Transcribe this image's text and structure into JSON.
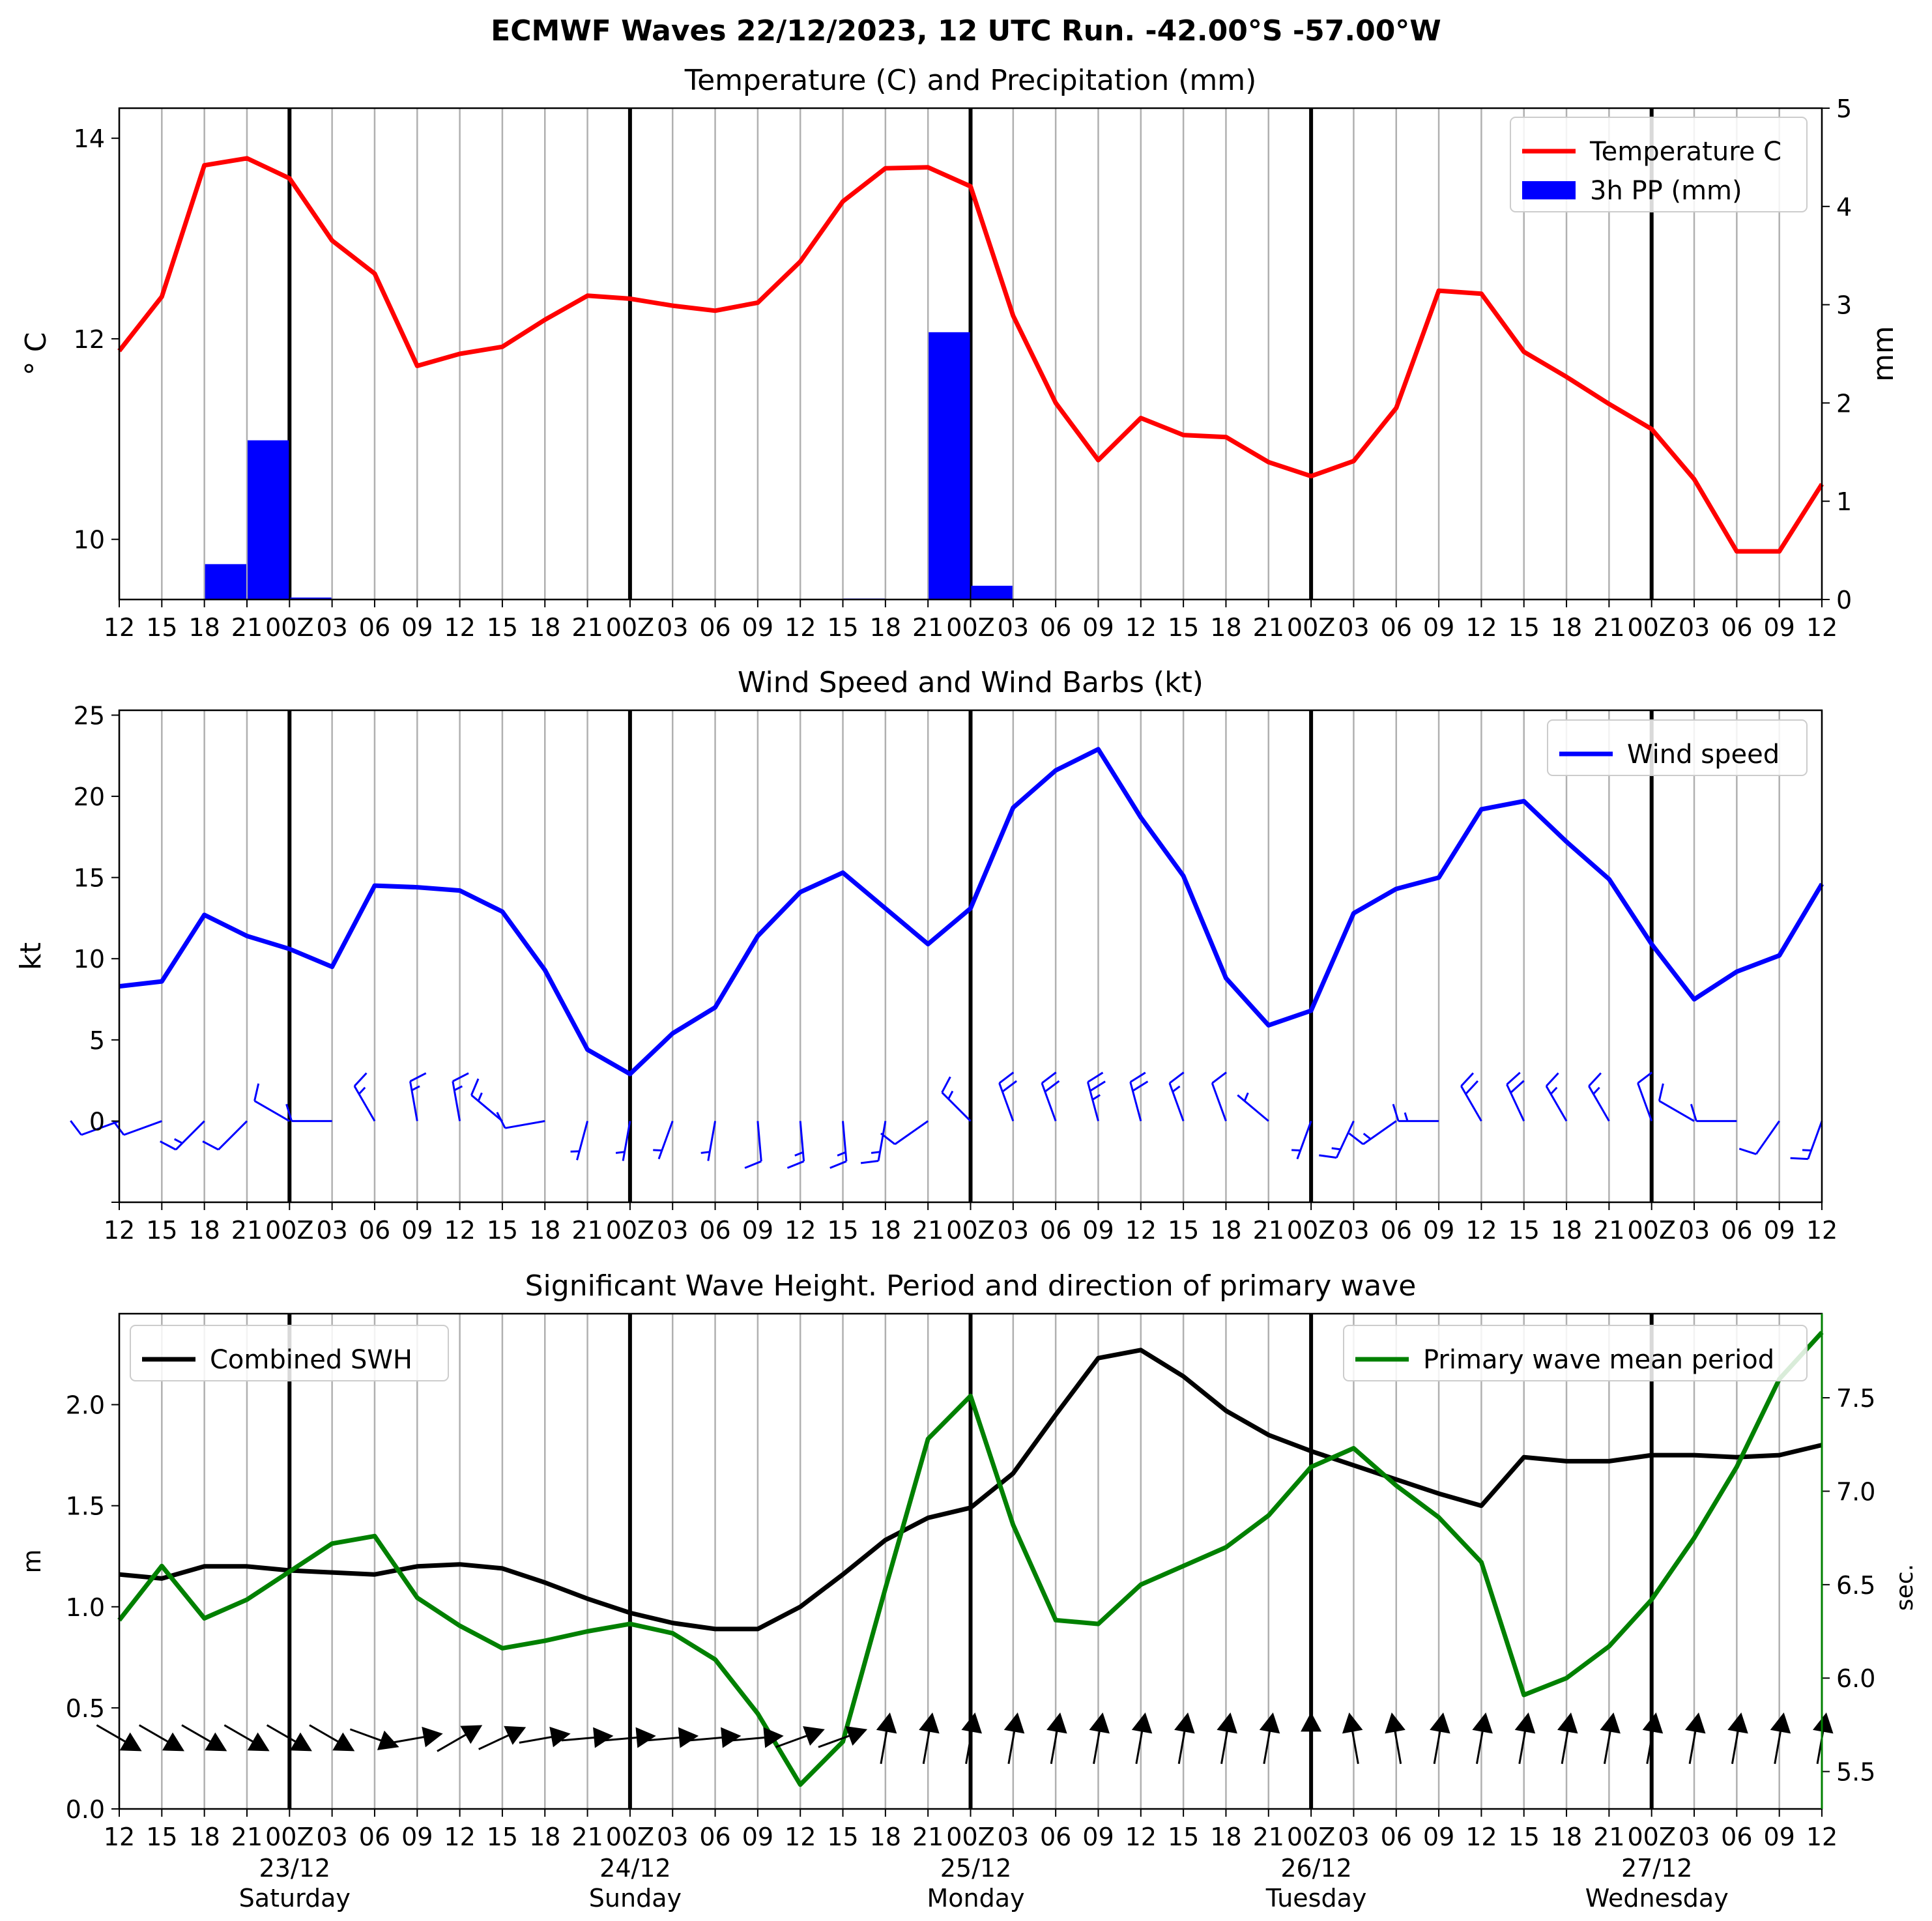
{
  "figure_title": "ECMWF Waves 22/12/2023, 12 UTC Run. -42.00°S -57.00°W",
  "x_tick_labels": [
    "12",
    "15",
    "18",
    "21",
    "00Z",
    "03",
    "06",
    "09",
    "12",
    "15",
    "18",
    "21",
    "00Z",
    "03",
    "06",
    "09",
    "12",
    "15",
    "18",
    "21",
    "00Z",
    "03",
    "06",
    "09",
    "12",
    "15",
    "18",
    "21",
    "00Z",
    "03",
    "06",
    "09",
    "12",
    "15",
    "18",
    "21",
    "00Z",
    "03",
    "06",
    "09",
    "12"
  ],
  "day_labels": [
    {
      "date": "23/12",
      "day": "Saturday"
    },
    {
      "date": "24/12",
      "day": "Sunday"
    },
    {
      "date": "25/12",
      "day": "Monday"
    },
    {
      "date": "26/12",
      "day": "Tuesday"
    },
    {
      "date": "27/12",
      "day": "Wednesday"
    }
  ],
  "colors": {
    "temperature": "#ff0000",
    "precip": "#0000ff",
    "wind": "#0000ff",
    "swh": "#000000",
    "period": "#008000",
    "grid": "#b0b0b0",
    "day_line": "#000000"
  },
  "chart_data": [
    {
      "type": "line",
      "title": "Temperature (C) and Precipitation (mm)",
      "ylabel": "$^\\circ$C",
      "ylabel_display": "° C",
      "y2label": "mm",
      "ylim": [
        9.4,
        14.3
      ],
      "yticks": [
        10,
        12,
        14
      ],
      "y2lim": [
        0,
        5
      ],
      "y2ticks": [
        0,
        1,
        2,
        3,
        4,
        5
      ],
      "legend_position": "top-right",
      "grid": true,
      "x_step_hours": 3,
      "series": [
        {
          "name": "Temperature C",
          "axis": "left",
          "type": "line",
          "values": [
            11.88,
            12.42,
            13.73,
            13.8,
            13.6,
            12.98,
            12.65,
            11.73,
            11.85,
            11.92,
            12.19,
            12.43,
            12.4,
            12.33,
            12.28,
            12.36,
            12.77,
            13.37,
            13.7,
            13.71,
            13.52,
            12.23,
            11.36,
            10.79,
            11.21,
            11.04,
            11.02,
            10.77,
            10.63,
            10.78,
            11.31,
            12.48,
            12.45,
            11.87,
            11.62,
            11.35,
            11.1,
            10.6,
            9.88,
            9.88,
            10.55
          ]
        },
        {
          "name": "3h PP (mm)",
          "axis": "right",
          "type": "bar",
          "values": [
            0,
            0,
            0.36,
            1.62,
            0.02,
            0,
            0,
            0,
            0,
            0,
            0,
            0,
            0,
            0,
            0,
            0,
            0,
            0.01,
            0,
            2.72,
            0.14,
            0,
            0,
            0,
            0,
            0,
            0,
            0,
            0,
            0,
            0,
            0,
            0,
            0,
            0,
            0,
            0,
            0,
            0,
            0
          ]
        }
      ]
    },
    {
      "type": "line",
      "title": "Wind Speed and Wind Barbs (kt)",
      "ylabel": "kt",
      "ylim": [
        -5,
        25.3
      ],
      "yticks": [
        0,
        5,
        10,
        15,
        20,
        25
      ],
      "legend_position": "top-right",
      "grid": true,
      "series": [
        {
          "name": "Wind speed",
          "values": [
            8.3,
            8.6,
            12.7,
            11.4,
            10.6,
            9.5,
            14.5,
            14.4,
            14.2,
            12.9,
            9.3,
            4.4,
            2.9,
            5.4,
            7.0,
            11.4,
            14.1,
            15.3,
            13.1,
            10.9,
            13.1,
            19.3,
            21.6,
            22.9,
            18.7,
            15.1,
            8.8,
            5.9,
            6.8,
            12.8,
            14.3,
            15.0,
            19.2,
            19.7,
            17.2,
            14.9,
            10.9,
            7.5,
            9.2,
            10.2,
            14.6
          ]
        }
      ],
      "barb_dir_deg": [
        250,
        250,
        225,
        225,
        300,
        270,
        330,
        350,
        350,
        310,
        260,
        195,
        190,
        200,
        190,
        175,
        175,
        175,
        190,
        235,
        315,
        340,
        340,
        345,
        345,
        340,
        340,
        310,
        200,
        205,
        235,
        270,
        330,
        335,
        330,
        330,
        340,
        300,
        270,
        215,
        200
      ]
    },
    {
      "type": "line",
      "title": "Significant Wave Height. Period and direction of primary wave",
      "ylabel": "m",
      "y2label": "sec.",
      "ylim": [
        0,
        2.45
      ],
      "yticks": [
        0.0,
        0.5,
        1.0,
        1.5,
        2.0
      ],
      "y2lim": [
        5.3,
        7.95
      ],
      "y2ticks": [
        5.5,
        6.0,
        6.5,
        7.0,
        7.5
      ],
      "grid": true,
      "series": [
        {
          "name": "Combined SWH",
          "axis": "left",
          "legend_position": "top-left",
          "values": [
            1.16,
            1.14,
            1.2,
            1.2,
            1.18,
            1.17,
            1.16,
            1.2,
            1.21,
            1.19,
            1.12,
            1.04,
            0.97,
            0.92,
            0.89,
            0.89,
            1.0,
            1.16,
            1.33,
            1.44,
            1.49,
            1.66,
            1.95,
            2.23,
            2.27,
            2.14,
            1.97,
            1.85,
            1.77,
            1.7,
            1.63,
            1.56,
            1.5,
            1.74,
            1.72,
            1.72,
            1.75,
            1.75,
            1.74,
            1.75,
            1.8
          ]
        },
        {
          "name": "Primary wave mean period",
          "axis": "right",
          "legend_position": "top-right",
          "values": [
            6.31,
            6.6,
            6.32,
            6.42,
            6.57,
            6.72,
            6.76,
            6.43,
            6.28,
            6.16,
            6.2,
            6.25,
            6.29,
            6.24,
            6.1,
            5.81,
            5.43,
            5.66,
            6.48,
            7.28,
            7.51,
            6.82,
            6.31,
            6.29,
            6.5,
            6.6,
            6.7,
            6.87,
            7.13,
            7.23,
            7.03,
            6.86,
            6.62,
            5.91,
            6.0,
            6.17,
            6.42,
            6.75,
            7.13,
            7.6,
            7.85
          ]
        }
      ],
      "arrow_to_deg": [
        120,
        120,
        120,
        120,
        120,
        120,
        110,
        80,
        60,
        65,
        80,
        85,
        85,
        85,
        85,
        85,
        70,
        70,
        10,
        10,
        10,
        10,
        10,
        10,
        10,
        10,
        10,
        10,
        0,
        350,
        350,
        10,
        10,
        10,
        10,
        10,
        10,
        10,
        10,
        10,
        10
      ]
    }
  ]
}
